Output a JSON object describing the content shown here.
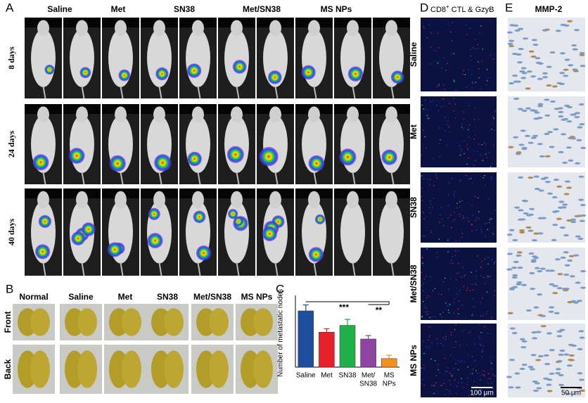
{
  "panel_labels": [
    "A",
    "B",
    "C",
    "D",
    "E"
  ],
  "panel_a": {
    "columns": [
      "Saline",
      "Met",
      "SN38",
      "Met/SN38",
      "MS NPs"
    ],
    "rows": [
      "8 days",
      "24 days",
      "40 days"
    ]
  },
  "panel_b": {
    "columns": [
      "Normal",
      "Saline",
      "Met",
      "SN38",
      "Met/SN38",
      "MS NPs"
    ],
    "rows": [
      "Front",
      "Back"
    ]
  },
  "chart_data": {
    "type": "bar",
    "y_label": "Number of metastatic nodes",
    "categories": [
      [
        "Saline"
      ],
      [
        "Met"
      ],
      [
        "SN38"
      ],
      [
        "Met/",
        "SN38"
      ],
      [
        "MS",
        "NPs"
      ]
    ],
    "values": [
      33,
      20.5,
      24.5,
      16.5,
      5
    ],
    "errors": [
      3.5,
      2,
      3.5,
      2,
      2
    ],
    "colors": [
      "#1f4ea0",
      "#e8202a",
      "#1fb04a",
      "#8e44a0",
      "#f5901e"
    ],
    "ylim": [
      0,
      40
    ],
    "annotations": [
      "***",
      "**"
    ]
  },
  "panel_d": {
    "title_parts": [
      "CD8",
      "+",
      " CTL & GzyB"
    ],
    "rows": [
      "Saline",
      "Met",
      "SN38",
      "Met/SN38",
      "MS NPs"
    ],
    "scale_bar": "100 μm"
  },
  "panel_e": {
    "title": "MMP-2",
    "scale_bar": "50 μm"
  }
}
